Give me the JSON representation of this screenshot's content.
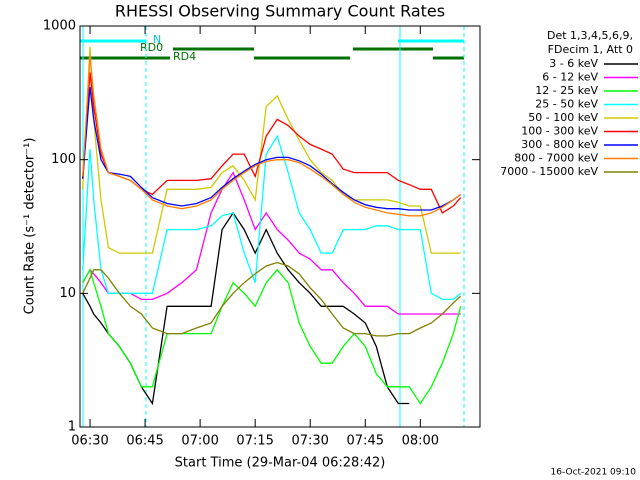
{
  "chart_data": {
    "type": "line",
    "title": "RHESSI Observing Summary Count Rates",
    "xlabel": "Start Time (29-Mar-04 06:28:42)",
    "ylabel": "Count Rate (s⁻¹ detector⁻¹)",
    "footer": "16-Oct-2021 09:10",
    "legend_header": [
      "Det 1,3,4,5,6,9,",
      "FDecim 1, Att 0"
    ],
    "annotations": [
      "N",
      "RD0",
      "RD4"
    ],
    "log_y": true,
    "legend": "right",
    "xlim": [
      "06:27:16",
      "08:16:16"
    ],
    "xticks": [
      "06:30",
      "06:45",
      "07:00",
      "07:15",
      "07:30",
      "07:45",
      "08:00"
    ],
    "ylim": [
      1,
      1000
    ],
    "yticks": [
      1,
      10,
      100,
      1000
    ],
    "x": [
      "06:28",
      "06:30",
      "06:31",
      "06:33",
      "06:35",
      "06:38",
      "06:41",
      "06:44",
      "06:47",
      "06:51",
      "06:55",
      "06:59",
      "07:03",
      "07:06",
      "07:09",
      "07:12",
      "07:15",
      "07:18",
      "07:21",
      "07:24",
      "07:27",
      "07:30",
      "07:33",
      "07:36",
      "07:39",
      "07:42",
      "07:45",
      "07:48",
      "07:51",
      "07:54",
      "07:57",
      "08:00",
      "08:03",
      "08:06",
      "08:09",
      "08:11"
    ],
    "series": [
      {
        "name": "3 - 6 keV",
        "color": "#000000",
        "values": [
          10,
          8,
          7,
          6,
          5,
          4,
          3,
          2,
          1.5,
          8,
          8,
          8,
          8,
          30,
          40,
          30,
          20,
          30,
          20,
          15,
          12,
          10,
          8,
          8,
          8,
          7,
          6,
          4,
          2,
          1.5,
          1.5,
          null,
          null,
          null,
          null,
          null
        ]
      },
      {
        "name": "6 - 12 keV",
        "color": "#ff00ff",
        "values": [
          12,
          15,
          14,
          12,
          10,
          10,
          10,
          9,
          9,
          10,
          12,
          15,
          40,
          60,
          80,
          50,
          30,
          40,
          30,
          25,
          20,
          18,
          15,
          15,
          12,
          10,
          8,
          8,
          8,
          7,
          7,
          7,
          7,
          7,
          7,
          7
        ]
      },
      {
        "name": "12 - 25 keV",
        "color": "#00ff00",
        "values": [
          12,
          15,
          12,
          8,
          5,
          4,
          3,
          2,
          2,
          5,
          5,
          5,
          5,
          8,
          12,
          10,
          8,
          12,
          15,
          12,
          6,
          4,
          3,
          3,
          4,
          5,
          4,
          2.5,
          2,
          2,
          2,
          1.5,
          2,
          3,
          5,
          8
        ]
      },
      {
        "name": "25 - 50 keV",
        "color": "#00ffff",
        "values": [
          15,
          120,
          50,
          15,
          10,
          10,
          10,
          10,
          10,
          30,
          30,
          30,
          32,
          38,
          40,
          20,
          12,
          110,
          150,
          80,
          40,
          30,
          20,
          20,
          30,
          30,
          30,
          32,
          32,
          30,
          30,
          30,
          10,
          9,
          9,
          10
        ]
      },
      {
        "name": "50 - 100 keV",
        "color": "#d0c800",
        "values": [
          60,
          700,
          200,
          50,
          22,
          20,
          20,
          20,
          20,
          60,
          60,
          60,
          62,
          80,
          90,
          70,
          50,
          250,
          300,
          200,
          140,
          100,
          80,
          70,
          55,
          50,
          50,
          50,
          50,
          48,
          45,
          45,
          20,
          20,
          20,
          20
        ]
      },
      {
        "name": "100 - 300 keV",
        "color": "#ff0000",
        "values": [
          72,
          450,
          250,
          110,
          80,
          75,
          70,
          60,
          55,
          70,
          70,
          70,
          72,
          90,
          110,
          110,
          75,
          150,
          200,
          180,
          150,
          130,
          120,
          110,
          85,
          80,
          80,
          80,
          80,
          70,
          65,
          60,
          60,
          40,
          45,
          52
        ]
      },
      {
        "name": "300 - 800 keV",
        "color": "#0000ff",
        "values": [
          72,
          350,
          200,
          100,
          80,
          78,
          75,
          62,
          52,
          47,
          45,
          47,
          52,
          62,
          72,
          82,
          92,
          100,
          104,
          104,
          98,
          90,
          78,
          66,
          57,
          50,
          46,
          44,
          43,
          43,
          42,
          42,
          42,
          45,
          50,
          55
        ]
      },
      {
        "name": "800 - 7000 keV",
        "color": "#ff8000",
        "values": [
          75,
          600,
          300,
          120,
          80,
          75,
          70,
          60,
          50,
          45,
          43,
          45,
          50,
          60,
          70,
          80,
          90,
          97,
          100,
          100,
          95,
          85,
          75,
          65,
          55,
          48,
          44,
          42,
          40,
          39,
          38,
          38,
          40,
          44,
          50,
          55
        ]
      },
      {
        "name": "7000 - 15000 keV",
        "color": "#808000",
        "values": [
          10,
          13,
          15,
          15,
          13,
          10,
          8,
          7,
          5.5,
          5,
          5,
          5.5,
          6,
          8,
          10,
          12,
          14,
          16,
          17,
          16,
          14,
          11,
          9,
          7,
          5.5,
          5,
          5,
          4.8,
          4.8,
          5,
          5,
          5.5,
          6,
          7,
          8.5,
          9.5
        ]
      }
    ]
  }
}
